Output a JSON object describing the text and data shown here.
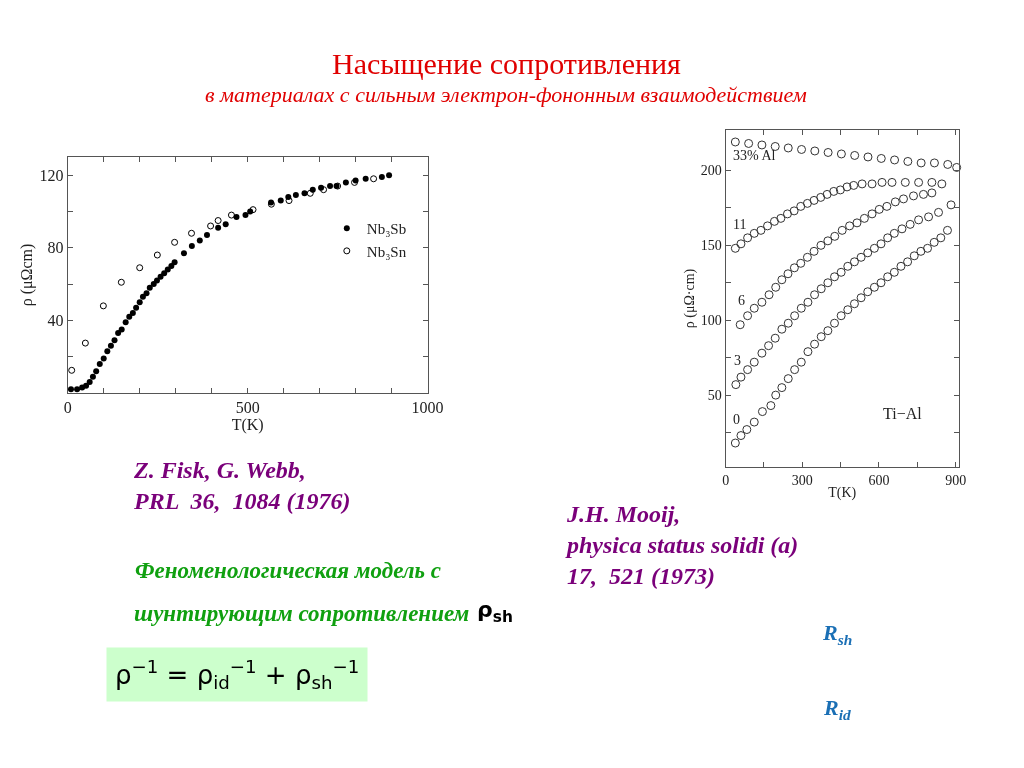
{
  "chart_data": [
    {
      "type": "scatter",
      "title": "Насыщение сопротивления",
      "subtitle": "в материалах с сильным электрон-фононным взаимодействием",
      "xlabel": "T(K)",
      "ylabel": "ρ (μΩcm)",
      "xlim": [
        0,
        1000
      ],
      "ylim": [
        0,
        130
      ],
      "xticks": [
        0,
        {
          "value": 100,
          "label": null
        },
        {
          "value": 200,
          "label": null
        },
        {
          "value": 300,
          "label": null
        },
        {
          "value": 400,
          "label": null
        },
        500,
        {
          "value": 600,
          "label": null
        },
        {
          "value": 700,
          "label": null
        },
        {
          "value": 800,
          "label": null
        },
        {
          "value": 900,
          "label": null
        },
        1000
      ],
      "yticks": [
        {
          "value": 20,
          "label": null
        },
        40,
        {
          "value": 60,
          "label": null
        },
        80,
        {
          "value": 100,
          "label": null
        },
        120
      ],
      "legend": "right",
      "marker": "circle",
      "series": [
        {
          "name": "Nb₃Sb",
          "color": "#000000",
          "marker": "circle",
          "x": [
            9,
            26,
            40,
            51,
            61,
            70,
            79,
            89,
            100,
            110,
            120,
            130,
            140,
            150,
            161,
            171,
            181,
            190,
            200,
            209,
            219,
            228,
            239,
            248,
            258,
            268,
            278,
            288,
            297,
            323,
            345,
            367,
            387,
            418,
            439,
            469,
            494,
            507,
            565,
            592,
            613,
            634,
            658,
            681,
            704,
            729,
            747,
            773,
            800,
            828,
            873,
            893
          ],
          "values": [
            2,
            2,
            3,
            4,
            6,
            9,
            12,
            16,
            19,
            23,
            26,
            29,
            33,
            35,
            39,
            42,
            44,
            47,
            50,
            53,
            55,
            58,
            60,
            62,
            64,
            66,
            68,
            70,
            72,
            77,
            81,
            84,
            87,
            91,
            93,
            97,
            98,
            100,
            105,
            106,
            108,
            109,
            110,
            112,
            113,
            114,
            114,
            116,
            117,
            118,
            119,
            120
          ]
        },
        {
          "name": "Nb₃Sn",
          "color": "#000000",
          "x": [
            11,
            49,
            99,
            149,
            200,
            249,
            297,
            344,
            397,
            418,
            455,
            515,
            566,
            615,
            674,
            711,
            750,
            797,
            850
          ],
          "values": [
            12.5,
            27.5,
            48,
            61,
            69,
            76,
            83,
            88,
            92,
            95,
            98,
            101,
            104,
            106,
            110,
            112,
            114,
            116,
            118
          ]
        }
      ],
      "annotations": [
        "Z. Fisk, G. Webb,\nPRL  36,  1084 (1976)"
      ]
    },
    {
      "type": "scatter",
      "xlabel": "T(K)",
      "ylabel": "ρ (μΩ·cm)",
      "xlim": [
        0,
        913
      ],
      "ylim": [
        2,
        227
      ],
      "xticks": [
        0,
        {
          "value": 150,
          "label": null
        },
        300,
        {
          "value": 450,
          "label": null
        },
        600,
        {
          "value": 750,
          "label": null
        },
        900
      ],
      "yticks": [
        {
          "value": 25,
          "label": null
        },
        50,
        {
          "value": 75,
          "label": null
        },
        100,
        {
          "value": 125,
          "label": null
        },
        150,
        {
          "value": 175,
          "label": null
        },
        200
      ],
      "legend": false,
      "marker": "circle",
      "series": [
        {
          "name": "33% Al",
          "color": "#333333",
          "x": [
            38,
            90,
            142,
            194,
            245,
            297,
            349,
            401,
            453,
            505,
            557,
            609,
            661,
            713,
            765,
            817,
            869,
            904
          ],
          "values": [
            219,
            218,
            217,
            216,
            215,
            214,
            213,
            212,
            211,
            210,
            209,
            208,
            207,
            206,
            205,
            205,
            204,
            202
          ]
        },
        {
          "name": "11",
          "color": "#333333",
          "x": [
            38,
            60,
            86,
            112,
            138,
            164,
            191,
            216,
            242,
            268,
            294,
            320,
            346,
            372,
            397,
            423,
            449,
            475,
            501,
            534,
            573,
            612,
            651,
            703,
            755,
            807,
            846
          ],
          "values": [
            148,
            151,
            155,
            158,
            160,
            163,
            166,
            168,
            171,
            173,
            176,
            178,
            180,
            182,
            184,
            186,
            187,
            189,
            190,
            191,
            191,
            192,
            192,
            192,
            192,
            192,
            191
          ]
        },
        {
          "name": "6",
          "color": "#333333",
          "x": [
            57,
            86,
            112,
            142,
            170,
            196,
            220,
            244,
            269,
            294,
            320,
            346,
            373,
            400,
            427,
            456,
            485,
            514,
            543,
            573,
            601,
            631,
            664,
            696,
            735,
            774,
            807
          ],
          "values": [
            97,
            103,
            108,
            112,
            117,
            122,
            127,
            131,
            135,
            138,
            142,
            146,
            150,
            153,
            156,
            160,
            163,
            165,
            168,
            171,
            174,
            176,
            179,
            181,
            183,
            184,
            185
          ]
        },
        {
          "name": "3",
          "color": "#333333",
          "x": [
            40,
            60,
            86,
            112,
            142,
            168,
            194,
            220,
            245,
            270,
            296,
            322,
            348,
            374,
            400,
            426,
            452,
            478,
            504,
            530,
            556,
            582,
            608,
            634,
            660,
            690,
            722,
            755,
            794,
            833,
            882
          ],
          "values": [
            57,
            62,
            67,
            72,
            78,
            83,
            88,
            94,
            98,
            103,
            108,
            112,
            117,
            121,
            125,
            129,
            132,
            136,
            139,
            142,
            145,
            148,
            151,
            155,
            158,
            161,
            164,
            167,
            169,
            172,
            177
          ]
        },
        {
          "name": "0",
          "color": "#333333",
          "x": [
            38,
            60,
            83,
            112,
            144,
            177,
            196,
            220,
            245,
            270,
            296,
            322,
            348,
            374,
            400,
            426,
            452,
            478,
            504,
            530,
            556,
            582,
            608,
            634,
            660,
            686,
            712,
            738,
            764,
            790,
            816,
            842,
            868
          ],
          "values": [
            18,
            23,
            27,
            32,
            39,
            43,
            50,
            55,
            61,
            67,
            72,
            79,
            84,
            89,
            93,
            98,
            103,
            107,
            111,
            115,
            119,
            122,
            125,
            129,
            132,
            136,
            139,
            143,
            146,
            148,
            152,
            155,
            160
          ]
        }
      ],
      "annotations": [
        "Ti−Al",
        "J.H. Mooij,\nphysica status solidi (a)\n17,  521 (1973)"
      ]
    },
    {
      "type": "other",
      "annotations": [
        "Феноменологическая модель с",
        "шунтирующим сопротивлением",
        "ρ$_{sh}$",
        "ρ$^{−1}$ = ρ$_{id}$$^{−1}$ + ρ$_{sh}$$^{−1}$",
        "R$_{sh}$",
        "R$_{id}$"
      ]
    }
  ]
}
